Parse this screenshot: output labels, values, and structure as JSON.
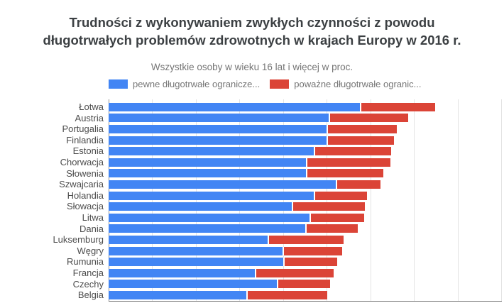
{
  "header": {
    "title_line1": "Trudności z wykonywaniem zwykłych czynności z powodu",
    "title_line2": "długotrwałych problemów zdrowotnych w krajach Europy w 2016 r.",
    "subtitle": "Wszystkie osoby w wieku 16 lat i więcej w proc."
  },
  "legend": {
    "items": [
      {
        "label": "pewne długotrwałe ogranicze...",
        "color": "#4285f4"
      },
      {
        "label": "poważne długotrwałe ogranic...",
        "color": "#db4437"
      }
    ]
  },
  "chart_data": {
    "type": "bar",
    "orientation": "horizontal",
    "stacked": true,
    "title": "Trudności z wykonywaniem zwykłych czynności z powodu długotrwałych problemów zdrowotnych w krajach Europy w 2016 r.",
    "subtitle": "Wszystkie osoby w wieku 16 lat i więcej w proc.",
    "categories": [
      "Łotwa",
      "Austria",
      "Portugalia",
      "Finlandia",
      "Estonia",
      "Chorwacja",
      "Słowenia",
      "Szwajcaria",
      "Holandia",
      "Słowacja",
      "Litwa",
      "Dania",
      "Luksemburg",
      "Węgry",
      "Rumunia",
      "Francja",
      "Czechy",
      "Belgia"
    ],
    "series": [
      {
        "name": "pewne długotrwałe ograniczenia",
        "color": "#4285f4",
        "values": [
          28.8,
          25.2,
          25.0,
          25.0,
          23.5,
          22.6,
          22.6,
          26.0,
          23.5,
          21.0,
          23.0,
          22.5,
          18.2,
          19.9,
          20.0,
          16.8,
          19.3,
          15.8
        ]
      },
      {
        "name": "poważne długotrwałe ograniczenia",
        "color": "#db4437",
        "values": [
          8.6,
          9.1,
          8.0,
          7.7,
          8.9,
          9.7,
          8.9,
          5.2,
          6.1,
          8.4,
          6.3,
          6.1,
          8.7,
          6.9,
          6.2,
          9.0,
          6.1,
          9.3
        ]
      }
    ],
    "totals": [
      37.4,
      34.3,
      33.0,
      32.7,
      32.4,
      32.3,
      31.5,
      31.2,
      29.6,
      29.4,
      29.3,
      28.6,
      26.9,
      26.8,
      26.2,
      25.8,
      25.4,
      25.1
    ],
    "xlabel": "",
    "ylabel": "",
    "xlim": [
      0,
      45
    ],
    "gridline_step": 5,
    "grid": true,
    "x_axis_labels_visible": false,
    "legend_position": "top"
  }
}
